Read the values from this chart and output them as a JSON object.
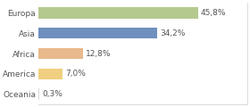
{
  "categories": [
    "Europa",
    "Asia",
    "Africa",
    "America",
    "Oceania"
  ],
  "values": [
    45.8,
    34.2,
    12.8,
    7.0,
    0.3
  ],
  "labels": [
    "45,8%",
    "34,2%",
    "12,8%",
    "7,0%",
    "0,3%"
  ],
  "bar_colors": [
    "#b5c98e",
    "#6f8fbf",
    "#e8b98a",
    "#f0d080",
    "#d8d8d8"
  ],
  "background_color": "#ffffff",
  "xlim": [
    0,
    60
  ],
  "label_fontsize": 6.5,
  "tick_fontsize": 6.5,
  "bar_height": 0.55
}
